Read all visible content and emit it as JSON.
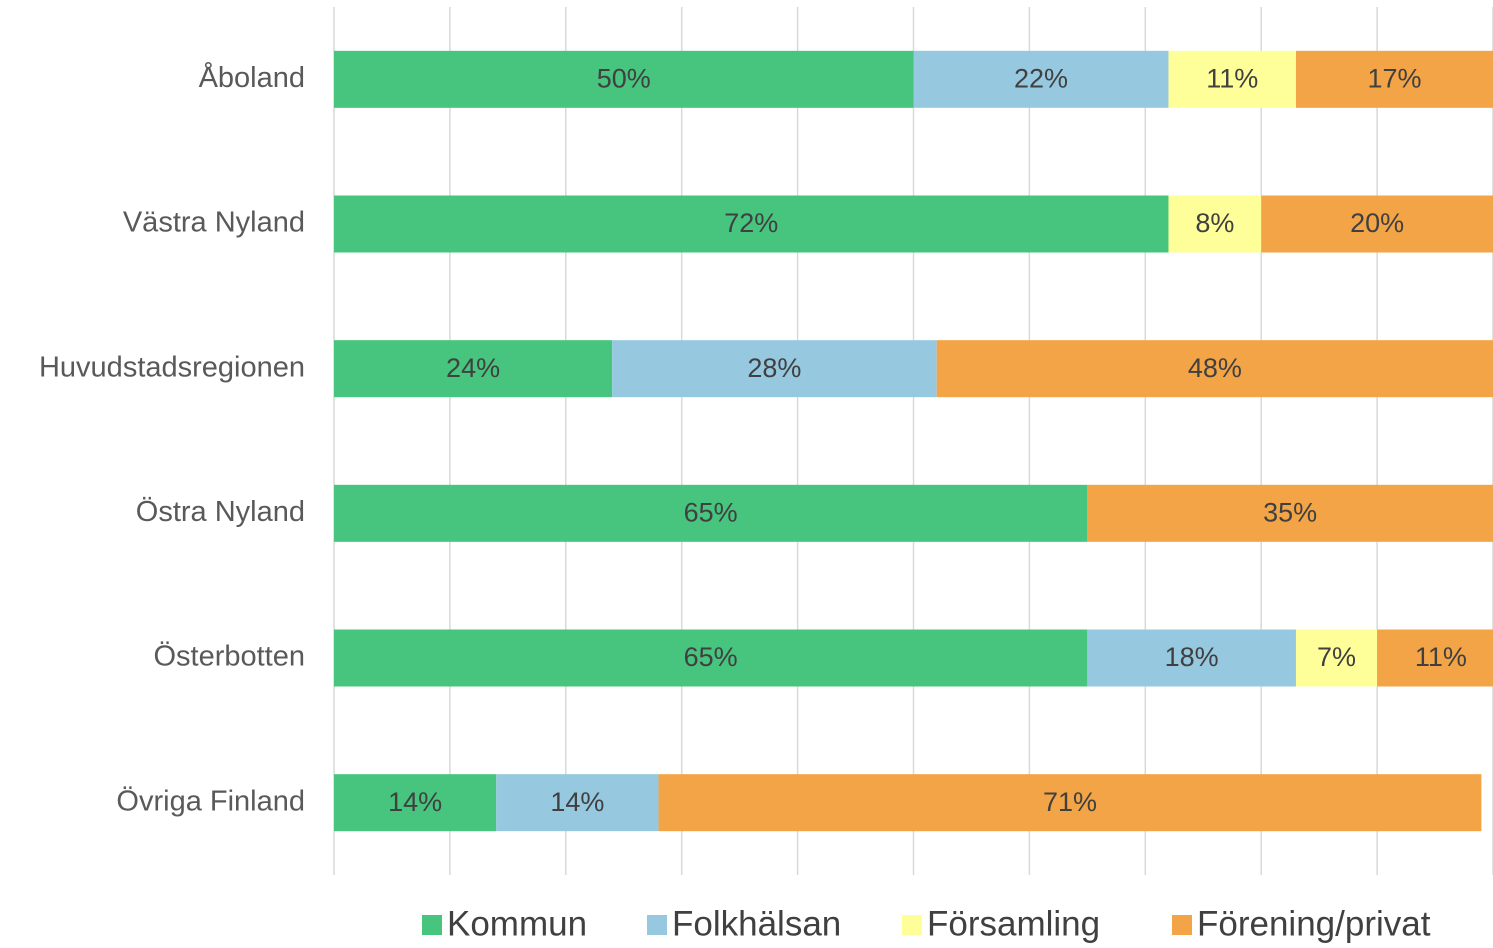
{
  "chart_data": {
    "type": "stacked_barh",
    "categories": [
      "Åboland",
      "Västra Nyland",
      "Huvudstadsregionen",
      "Östra Nyland",
      "Österbotten",
      "Övriga Finland"
    ],
    "series": [
      {
        "name": "Kommun",
        "color": "#47c47e",
        "values": [
          50,
          72,
          24,
          65,
          65,
          14
        ],
        "value_labels": [
          "50%",
          "72%",
          "24%",
          "65%",
          "65%",
          "14%"
        ]
      },
      {
        "name": "Folkhälsan",
        "color": "#96c8e0",
        "values": [
          22,
          null,
          28,
          null,
          18,
          14
        ],
        "value_labels": [
          "22%",
          null,
          "28%",
          null,
          "18%",
          "14%"
        ]
      },
      {
        "name": "Församling",
        "color": "#ffff99",
        "values": [
          11,
          8,
          null,
          null,
          7,
          null
        ],
        "value_labels": [
          "11%",
          "8%",
          null,
          null,
          "7%",
          null
        ]
      },
      {
        "name": "Förening/privat",
        "color": "#f3a446",
        "values": [
          17,
          20,
          48,
          35,
          11,
          71
        ],
        "value_labels": [
          "17%",
          "20%",
          "48%",
          "35%",
          "11%",
          "71%"
        ]
      }
    ],
    "xlim": [
      0,
      100
    ],
    "xticks": [
      0,
      10,
      20,
      30,
      40,
      50,
      60,
      70,
      80,
      90,
      100
    ],
    "grid": true,
    "legend": "bottom"
  }
}
